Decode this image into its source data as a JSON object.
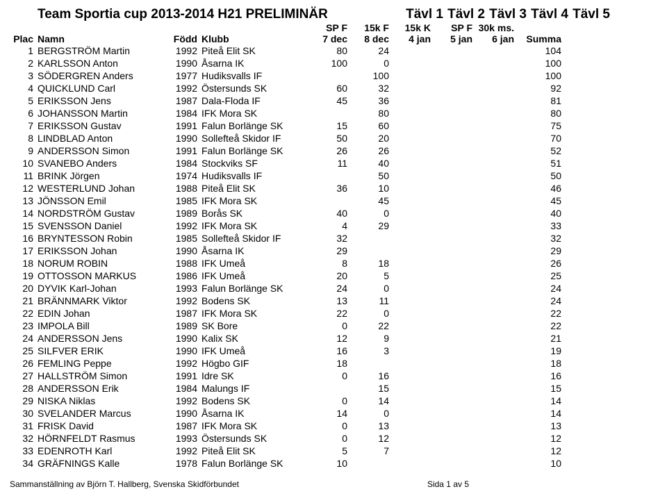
{
  "title": "Team Sportia cup 2013-2014 H21 PRELIMINÄR",
  "events": {
    "t1": "Tävl 1",
    "t2": "Tävl 2",
    "t3": "Tävl 3",
    "t4": "Tävl 4",
    "t5": "Tävl 5",
    "s1": "SP F",
    "s2": "15k F",
    "s3": "15k K",
    "s4": "SP F",
    "s5": "30k ms.",
    "d1": "7 dec",
    "d2": "8 dec",
    "d3": "4 jan",
    "d4": "5 jan",
    "d5": "6 jan"
  },
  "headers": {
    "plac": "Plac",
    "namn": "Namn",
    "fodd": "Född",
    "klubb": "Klubb",
    "summa": "Summa"
  },
  "rows": [
    {
      "p": "1",
      "n": "BERGSTRÖM Martin",
      "f": "1992",
      "k": "Piteå Elit SK",
      "v": [
        "80",
        "24",
        "",
        "",
        ""
      ],
      "s": "104"
    },
    {
      "p": "2",
      "n": "KARLSSON Anton",
      "f": "1990",
      "k": "Åsarna IK",
      "v": [
        "100",
        "0",
        "",
        "",
        ""
      ],
      "s": "100"
    },
    {
      "p": "3",
      "n": "SÖDERGREN Anders",
      "f": "1977",
      "k": "Hudiksvalls IF",
      "v": [
        "",
        "100",
        "",
        "",
        ""
      ],
      "s": "100"
    },
    {
      "p": "4",
      "n": "QUICKLUND Carl",
      "f": "1992",
      "k": "Östersunds SK",
      "v": [
        "60",
        "32",
        "",
        "",
        ""
      ],
      "s": "92"
    },
    {
      "p": "5",
      "n": "ERIKSSON Jens",
      "f": "1987",
      "k": "Dala-Floda IF",
      "v": [
        "45",
        "36",
        "",
        "",
        ""
      ],
      "s": "81"
    },
    {
      "p": "6",
      "n": "JOHANSSON Martin",
      "f": "1984",
      "k": "IFK Mora SK",
      "v": [
        "",
        "80",
        "",
        "",
        ""
      ],
      "s": "80"
    },
    {
      "p": "7",
      "n": "ERIKSSON Gustav",
      "f": "1991",
      "k": "Falun Borlänge SK",
      "v": [
        "15",
        "60",
        "",
        "",
        ""
      ],
      "s": "75"
    },
    {
      "p": "8",
      "n": "LINDBLAD Anton",
      "f": "1990",
      "k": "Sollefteå Skidor IF",
      "v": [
        "50",
        "20",
        "",
        "",
        ""
      ],
      "s": "70"
    },
    {
      "p": "9",
      "n": "ANDERSSON Simon",
      "f": "1991",
      "k": "Falun Borlänge SK",
      "v": [
        "26",
        "26",
        "",
        "",
        ""
      ],
      "s": "52"
    },
    {
      "p": "10",
      "n": "SVANEBO Anders",
      "f": "1984",
      "k": "Stockviks SF",
      "v": [
        "11",
        "40",
        "",
        "",
        ""
      ],
      "s": "51"
    },
    {
      "p": "11",
      "n": "BRINK Jörgen",
      "f": "1974",
      "k": "Hudiksvalls IF",
      "v": [
        "",
        "50",
        "",
        "",
        ""
      ],
      "s": "50"
    },
    {
      "p": "12",
      "n": "WESTERLUND Johan",
      "f": "1988",
      "k": "Piteå Elit SK",
      "v": [
        "36",
        "10",
        "",
        "",
        ""
      ],
      "s": "46"
    },
    {
      "p": "13",
      "n": "JÖNSSON Emil",
      "f": "1985",
      "k": "IFK Mora SK",
      "v": [
        "",
        "45",
        "",
        "",
        ""
      ],
      "s": "45"
    },
    {
      "p": "14",
      "n": "NORDSTRÖM Gustav",
      "f": "1989",
      "k": "Borås SK",
      "v": [
        "40",
        "0",
        "",
        "",
        ""
      ],
      "s": "40"
    },
    {
      "p": "15",
      "n": "SVENSSON Daniel",
      "f": "1992",
      "k": "IFK Mora SK",
      "v": [
        "4",
        "29",
        "",
        "",
        ""
      ],
      "s": "33"
    },
    {
      "p": "16",
      "n": "BRYNTESSON Robin",
      "f": "1985",
      "k": "Sollefteå Skidor IF",
      "v": [
        "32",
        "",
        "",
        "",
        ""
      ],
      "s": "32"
    },
    {
      "p": "17",
      "n": "ERIKSSON Johan",
      "f": "1990",
      "k": "Åsarna IK",
      "v": [
        "29",
        "",
        "",
        "",
        ""
      ],
      "s": "29"
    },
    {
      "p": "18",
      "n": "NORUM ROBIN",
      "f": "1988",
      "k": "IFK Umeå",
      "v": [
        "8",
        "18",
        "",
        "",
        ""
      ],
      "s": "26"
    },
    {
      "p": "19",
      "n": "OTTOSSON MARKUS",
      "f": "1986",
      "k": "IFK Umeå",
      "v": [
        "20",
        "5",
        "",
        "",
        ""
      ],
      "s": "25"
    },
    {
      "p": "20",
      "n": "DYVIK Karl-Johan",
      "f": "1993",
      "k": "Falun Borlänge SK",
      "v": [
        "24",
        "0",
        "",
        "",
        ""
      ],
      "s": "24"
    },
    {
      "p": "21",
      "n": "BRÄNNMARK Viktor",
      "f": "1992",
      "k": "Bodens SK",
      "v": [
        "13",
        "11",
        "",
        "",
        ""
      ],
      "s": "24"
    },
    {
      "p": "22",
      "n": "EDIN Johan",
      "f": "1987",
      "k": "IFK Mora SK",
      "v": [
        "22",
        "0",
        "",
        "",
        ""
      ],
      "s": "22"
    },
    {
      "p": "23",
      "n": "IMPOLA Bill",
      "f": "1989",
      "k": "SK Bore",
      "v": [
        "0",
        "22",
        "",
        "",
        ""
      ],
      "s": "22"
    },
    {
      "p": "24",
      "n": "ANDERSSON Jens",
      "f": "1990",
      "k": "Kalix SK",
      "v": [
        "12",
        "9",
        "",
        "",
        ""
      ],
      "s": "21"
    },
    {
      "p": "25",
      "n": "SILFVER ERIK",
      "f": "1990",
      "k": "IFK Umeå",
      "v": [
        "16",
        "3",
        "",
        "",
        ""
      ],
      "s": "19"
    },
    {
      "p": "26",
      "n": "FEMLING Peppe",
      "f": "1992",
      "k": "Högbo GIF",
      "v": [
        "18",
        "",
        "",
        "",
        ""
      ],
      "s": "18"
    },
    {
      "p": "27",
      "n": "HALLSTRÖM Simon",
      "f": "1991",
      "k": "Idre SK",
      "v": [
        "0",
        "16",
        "",
        "",
        ""
      ],
      "s": "16"
    },
    {
      "p": "28",
      "n": "ANDERSSON Erik",
      "f": "1984",
      "k": "Malungs IF",
      "v": [
        "",
        "15",
        "",
        "",
        ""
      ],
      "s": "15"
    },
    {
      "p": "29",
      "n": "NISKA Niklas",
      "f": "1992",
      "k": "Bodens SK",
      "v": [
        "0",
        "14",
        "",
        "",
        ""
      ],
      "s": "14"
    },
    {
      "p": "30",
      "n": "SVELANDER Marcus",
      "f": "1990",
      "k": "Åsarna IK",
      "v": [
        "14",
        "0",
        "",
        "",
        ""
      ],
      "s": "14"
    },
    {
      "p": "31",
      "n": "FRISK David",
      "f": "1987",
      "k": "IFK Mora SK",
      "v": [
        "0",
        "13",
        "",
        "",
        ""
      ],
      "s": "13"
    },
    {
      "p": "32",
      "n": "HÖRNFELDT Rasmus",
      "f": "1993",
      "k": "Östersunds SK",
      "v": [
        "0",
        "12",
        "",
        "",
        ""
      ],
      "s": "12"
    },
    {
      "p": "33",
      "n": "EDENROTH Karl",
      "f": "1992",
      "k": "Piteå Elit SK",
      "v": [
        "5",
        "7",
        "",
        "",
        ""
      ],
      "s": "12"
    },
    {
      "p": "34",
      "n": "GRÄFNINGS Kalle",
      "f": "1978",
      "k": "Falun Borlänge SK",
      "v": [
        "10",
        "",
        "",
        "",
        ""
      ],
      "s": "10"
    }
  ],
  "footer": {
    "left": "Sammanställning av Björn T. Hallberg, Svenska Skidförbundet",
    "center": "Sida 1 av 5",
    "right": ""
  }
}
